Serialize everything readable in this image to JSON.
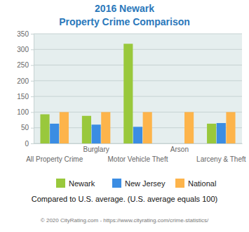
{
  "chart_data": {
    "type": "bar",
    "title": "2016 Newark",
    "subtitle": "Property Crime Comparison",
    "categories": [
      "All Property Crime",
      "Burglary",
      "Motor Vehicle Theft",
      "Arson",
      "Larceny & Theft"
    ],
    "series": [
      {
        "name": "Newark",
        "color": "#99c83c",
        "values": [
          93,
          88,
          318,
          null,
          63
        ]
      },
      {
        "name": "New Jersey",
        "color": "#3b8de3",
        "values": [
          63,
          60,
          53,
          null,
          65
        ]
      },
      {
        "name": "National",
        "color": "#fdb44b",
        "values": [
          100,
          100,
          100,
          100,
          100
        ]
      }
    ],
    "ylim": [
      0,
      350
    ],
    "yticks": [
      0,
      50,
      100,
      150,
      200,
      250,
      300,
      350
    ],
    "grid": true,
    "legend": "bottom",
    "annotations": [
      "Compared to U.S. average. (U.S. average equals 100)",
      "© 2020 CityRating.com - https://www.cityrating.com/crime-statistics/"
    ]
  }
}
